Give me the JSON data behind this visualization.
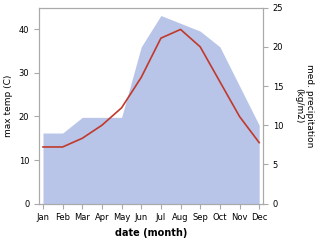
{
  "months": [
    "Jan",
    "Feb",
    "Mar",
    "Apr",
    "May",
    "Jun",
    "Jul",
    "Aug",
    "Sep",
    "Oct",
    "Nov",
    "Dec"
  ],
  "month_indices": [
    1,
    2,
    3,
    4,
    5,
    6,
    7,
    8,
    9,
    10,
    11,
    12
  ],
  "max_temp": [
    13,
    13,
    15,
    18,
    22,
    29,
    38,
    40,
    36,
    28,
    20,
    14
  ],
  "precipitation": [
    9,
    9,
    11,
    11,
    11,
    20,
    24,
    23,
    22,
    20,
    15,
    10
  ],
  "temp_ylim": [
    0,
    45
  ],
  "precip_ylim": [
    0,
    25
  ],
  "temp_color": "#c0392b",
  "fill_color": "#b8c4e8",
  "fill_alpha": 1.0,
  "ylabel_left": "max temp (C)",
  "ylabel_right": "med. precipitation\n(kg/m2)",
  "xlabel": "date (month)",
  "yticks_left": [
    0,
    10,
    20,
    30,
    40
  ],
  "yticks_right": [
    0,
    5,
    10,
    15,
    20,
    25
  ],
  "background_color": "#ffffff",
  "spine_color": "#aaaaaa",
  "tick_labelsize": 6,
  "ylabel_fontsize": 6.5,
  "xlabel_fontsize": 7
}
